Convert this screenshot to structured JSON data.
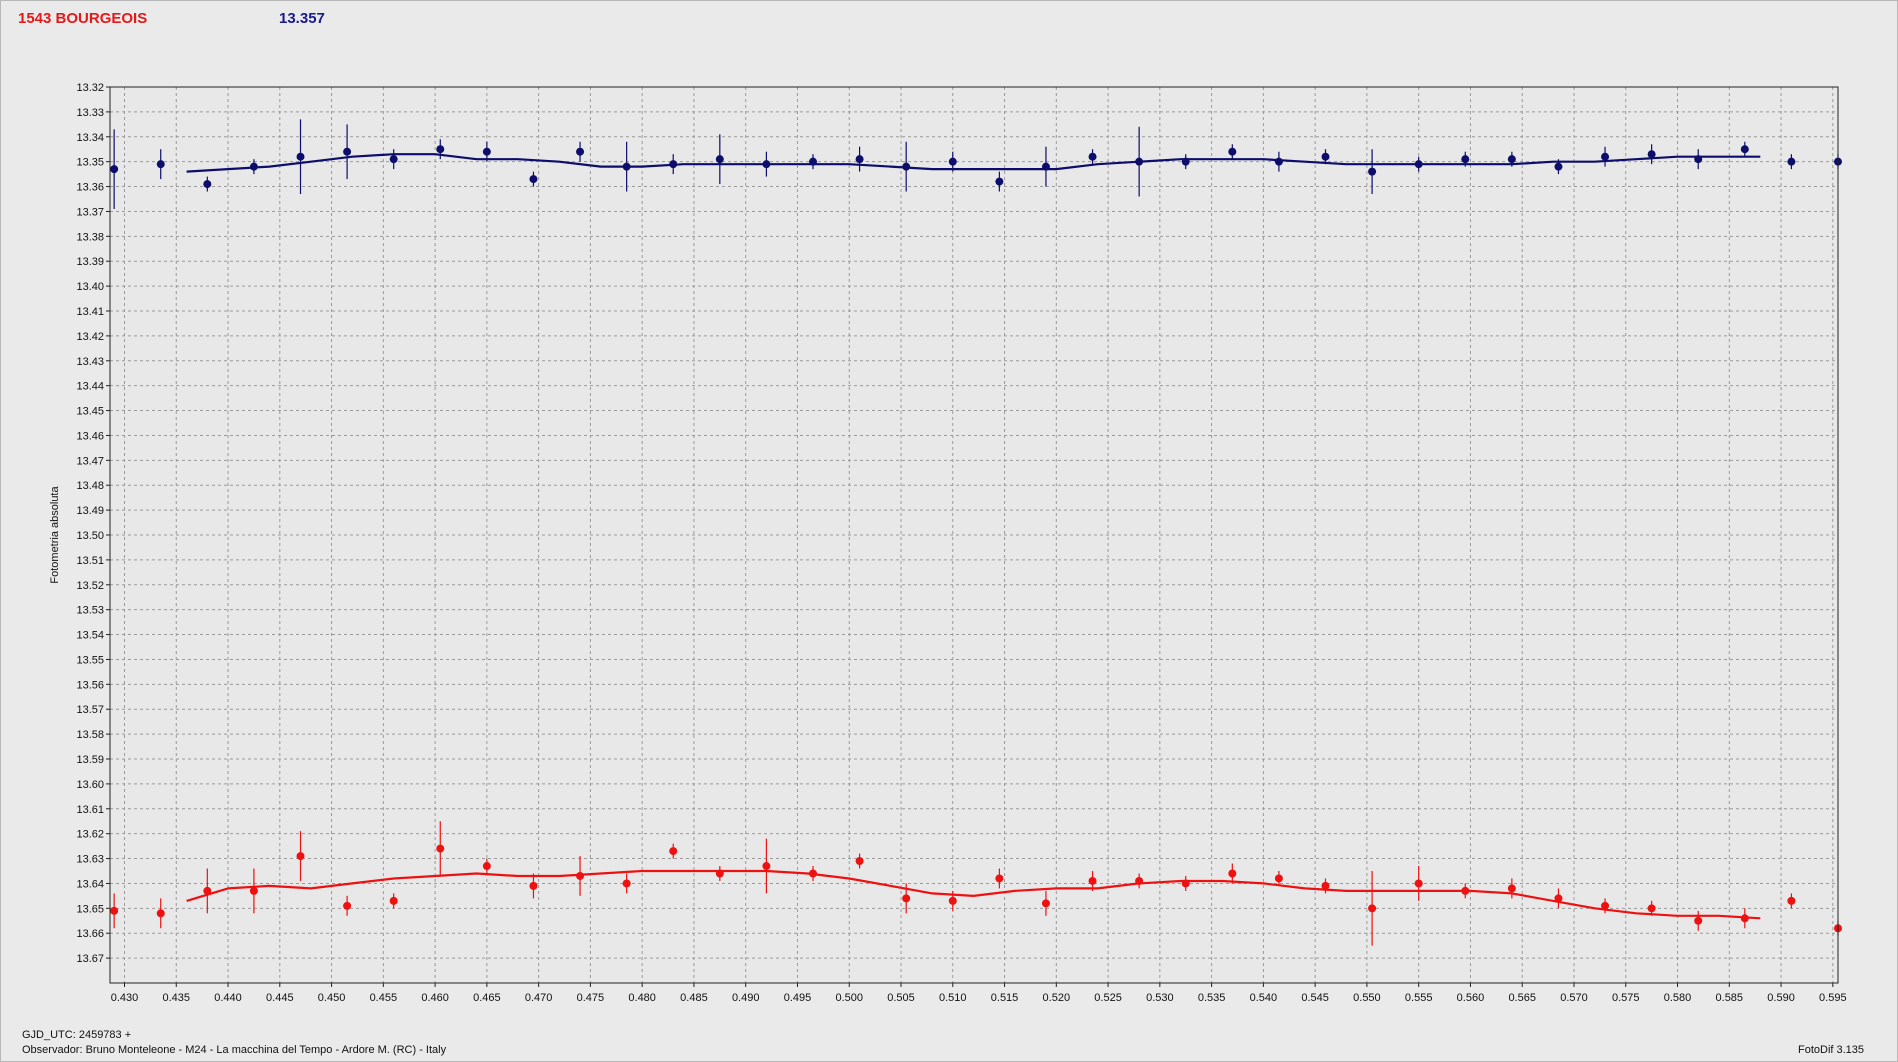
{
  "header": {
    "object_name": "1543 BOURGEOIS",
    "value": "13.357"
  },
  "footer": {
    "gjd": "GJD_UTC: 2459783 +",
    "observer": "Observador: Bruno Monteleone - M24 - La macchina del Tempo - Ardore M. (RC) - Italy",
    "version": "FotoDif 3.135"
  },
  "colors": {
    "blue": "#0d0d6b",
    "red": "#ee1111",
    "grid": "#9a9a9a",
    "plot_bg": "#e8e8e8",
    "axis": "#222222"
  },
  "chart_data": {
    "type": "scatter",
    "ylabel": "Fotometria absoluta",
    "xlabel": "",
    "xlim": [
      0.4286,
      0.5955
    ],
    "ylim": [
      13.68,
      13.32
    ],
    "x_ticks": [
      "0.430",
      "0.435",
      "0.440",
      "0.445",
      "0.450",
      "0.455",
      "0.460",
      "0.465",
      "0.470",
      "0.475",
      "0.480",
      "0.485",
      "0.490",
      "0.495",
      "0.500",
      "0.505",
      "0.510",
      "0.515",
      "0.520",
      "0.525",
      "0.530",
      "0.535",
      "0.540",
      "0.545",
      "0.550",
      "0.555",
      "0.560",
      "0.565",
      "0.570",
      "0.575",
      "0.580",
      "0.585",
      "0.590",
      "0.595"
    ],
    "y_ticks": [
      "13.32",
      "13.33",
      "13.34",
      "13.35",
      "13.36",
      "13.37",
      "13.38",
      "13.39",
      "13.40",
      "13.41",
      "13.42",
      "13.43",
      "13.44",
      "13.45",
      "13.46",
      "13.47",
      "13.48",
      "13.49",
      "13.50",
      "13.51",
      "13.52",
      "13.53",
      "13.54",
      "13.55",
      "13.56",
      "13.57",
      "13.58",
      "13.59",
      "13.60",
      "13.61",
      "13.62",
      "13.63",
      "13.64",
      "13.65",
      "13.66",
      "13.67"
    ],
    "grid": true,
    "series": [
      {
        "color": "#0d0d6b",
        "x": [
          0.429,
          0.4335,
          0.438,
          0.4425,
          0.447,
          0.4515,
          0.456,
          0.4605,
          0.465,
          0.4695,
          0.474,
          0.4785,
          0.483,
          0.4875,
          0.492,
          0.4965,
          0.501,
          0.5055,
          0.51,
          0.5145,
          0.519,
          0.5235,
          0.528,
          0.5325,
          0.537,
          0.5415,
          0.546,
          0.5505,
          0.555,
          0.5595,
          0.564,
          0.5685,
          0.573,
          0.5775,
          0.582,
          0.5865,
          0.591,
          0.5955
        ],
        "y": [
          13.353,
          13.351,
          13.359,
          13.352,
          13.348,
          13.346,
          13.349,
          13.345,
          13.346,
          13.357,
          13.346,
          13.352,
          13.351,
          13.349,
          13.351,
          13.35,
          13.349,
          13.352,
          13.35,
          13.358,
          13.352,
          13.348,
          13.35,
          13.35,
          13.346,
          13.35,
          13.348,
          13.354,
          13.351,
          13.349,
          13.349,
          13.352,
          13.348,
          13.347,
          13.349,
          13.345,
          13.35,
          13.35
        ],
        "err": [
          0.016,
          0.006,
          0.003,
          0.003,
          0.015,
          0.011,
          0.004,
          0.004,
          0.004,
          0.003,
          0.004,
          0.01,
          0.004,
          0.01,
          0.005,
          0.003,
          0.005,
          0.01,
          0.004,
          0.004,
          0.008,
          0.003,
          0.014,
          0.003,
          0.003,
          0.004,
          0.003,
          0.009,
          0.003,
          0.003,
          0.003,
          0.003,
          0.004,
          0.004,
          0.004,
          0.003,
          0.003,
          0.003
        ],
        "fit_x": [
          0.436,
          0.44,
          0.444,
          0.448,
          0.452,
          0.456,
          0.46,
          0.464,
          0.468,
          0.472,
          0.476,
          0.48,
          0.484,
          0.488,
          0.492,
          0.496,
          0.5,
          0.504,
          0.508,
          0.512,
          0.516,
          0.52,
          0.524,
          0.528,
          0.532,
          0.536,
          0.54,
          0.544,
          0.548,
          0.552,
          0.556,
          0.56,
          0.564,
          0.568,
          0.572,
          0.576,
          0.58,
          0.584,
          0.588
        ],
        "fit_y": [
          13.354,
          13.353,
          13.352,
          13.35,
          13.348,
          13.347,
          13.347,
          13.349,
          13.349,
          13.35,
          13.352,
          13.352,
          13.351,
          13.351,
          13.351,
          13.351,
          13.351,
          13.352,
          13.353,
          13.353,
          13.353,
          13.353,
          13.351,
          13.35,
          13.349,
          13.349,
          13.349,
          13.35,
          13.351,
          13.351,
          13.351,
          13.351,
          13.351,
          13.35,
          13.35,
          13.349,
          13.348,
          13.348,
          13.348
        ]
      },
      {
        "color": "#ee1111",
        "x": [
          0.429,
          0.4335,
          0.438,
          0.4425,
          0.447,
          0.4515,
          0.456,
          0.4605,
          0.465,
          0.4695,
          0.474,
          0.4785,
          0.483,
          0.4875,
          0.492,
          0.4965,
          0.501,
          0.5055,
          0.51,
          0.5145,
          0.519,
          0.5235,
          0.528,
          0.5325,
          0.537,
          0.5415,
          0.546,
          0.5505,
          0.555,
          0.5595,
          0.564,
          0.5685,
          0.573,
          0.5775,
          0.582,
          0.5865,
          0.591,
          0.5955
        ],
        "y": [
          13.651,
          13.652,
          13.643,
          13.643,
          13.629,
          13.649,
          13.647,
          13.626,
          13.633,
          13.641,
          13.637,
          13.64,
          13.627,
          13.636,
          13.633,
          13.636,
          13.631,
          13.646,
          13.647,
          13.638,
          13.648,
          13.639,
          13.639,
          13.64,
          13.636,
          13.638,
          13.641,
          13.65,
          13.64,
          13.643,
          13.642,
          13.646,
          13.649,
          13.65,
          13.655,
          13.654,
          13.647,
          13.658
        ],
        "err": [
          0.007,
          0.006,
          0.009,
          0.009,
          0.01,
          0.004,
          0.003,
          0.011,
          0.003,
          0.005,
          0.008,
          0.004,
          0.003,
          0.003,
          0.011,
          0.003,
          0.003,
          0.006,
          0.004,
          0.004,
          0.005,
          0.004,
          0.003,
          0.003,
          0.004,
          0.003,
          0.003,
          0.015,
          0.007,
          0.003,
          0.004,
          0.004,
          0.003,
          0.003,
          0.004,
          0.004,
          0.003,
          0.003
        ],
        "fit_x": [
          0.436,
          0.44,
          0.444,
          0.448,
          0.452,
          0.456,
          0.46,
          0.464,
          0.468,
          0.472,
          0.476,
          0.48,
          0.484,
          0.488,
          0.492,
          0.496,
          0.5,
          0.504,
          0.508,
          0.512,
          0.516,
          0.52,
          0.524,
          0.528,
          0.532,
          0.536,
          0.54,
          0.544,
          0.548,
          0.552,
          0.556,
          0.56,
          0.564,
          0.568,
          0.572,
          0.576,
          0.58,
          0.584,
          0.588
        ],
        "fit_y": [
          13.647,
          13.642,
          13.641,
          13.642,
          13.64,
          13.638,
          13.637,
          13.636,
          13.637,
          13.637,
          13.636,
          13.635,
          13.635,
          13.635,
          13.635,
          13.636,
          13.638,
          13.641,
          13.644,
          13.645,
          13.643,
          13.642,
          13.642,
          13.64,
          13.639,
          13.639,
          13.64,
          13.642,
          13.643,
          13.643,
          13.643,
          13.643,
          13.644,
          13.647,
          13.65,
          13.652,
          13.653,
          13.653,
          13.654
        ]
      }
    ]
  }
}
